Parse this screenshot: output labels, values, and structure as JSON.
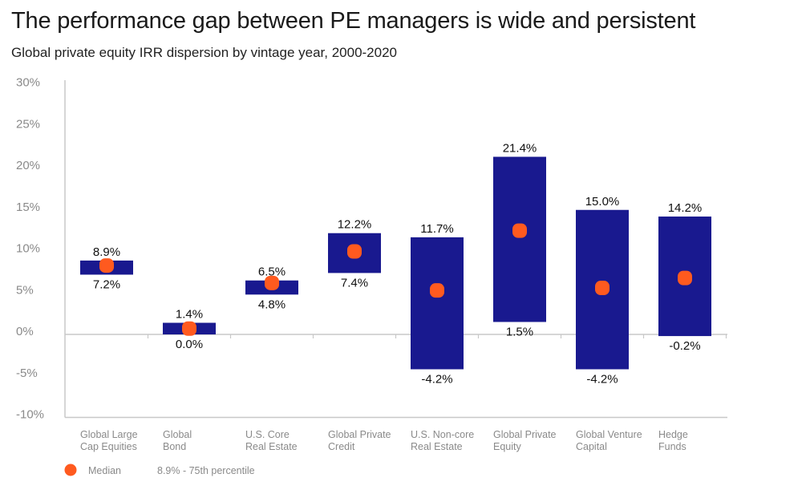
{
  "chart_data": {
    "type": "floating-bar",
    "title": "The performance gap between PE managers is wide and persistent",
    "subtitle": "Global private equity IRR dispersion by vintage year, 2000-2020",
    "ylim": [
      -10,
      30
    ],
    "yticks": [
      "30%",
      "25%",
      "20%",
      "15%",
      "10%",
      "5%",
      "0%",
      "-5%",
      "-10%"
    ],
    "ytick_values": [
      30,
      25,
      20,
      15,
      10,
      5,
      0,
      -5,
      -10
    ],
    "grid": false,
    "categories": [
      [
        "Global Large",
        "Cap Equities"
      ],
      [
        "Global",
        "Bond"
      ],
      [
        "U.S. Core",
        "Real Estate"
      ],
      [
        "Global Private",
        "Credit"
      ],
      [
        "U.S. Non-core",
        "Real Estate"
      ],
      [
        "Global Private",
        "Equity"
      ],
      [
        "Global Venture",
        "Capital"
      ],
      [
        "Hedge",
        "Funds"
      ]
    ],
    "top_75th": [
      8.9,
      1.4,
      6.5,
      12.2,
      11.7,
      21.4,
      15.0,
      14.2
    ],
    "bottom_25th": [
      7.2,
      0.0,
      4.8,
      7.4,
      -4.2,
      1.5,
      -4.2,
      -0.2
    ],
    "top_labels": [
      "8.9%",
      "1.4%",
      "6.5%",
      "12.2%",
      "11.7%",
      "21.4%",
      "15.0%",
      "14.2%"
    ],
    "bottom_labels": [
      "7.2%",
      "0.0%",
      "4.8%",
      "7.4%",
      "-4.2%",
      "1.5%",
      "-4.2%",
      "-0.2%"
    ],
    "median": [
      8.3,
      0.7,
      6.2,
      10.0,
      5.3,
      12.5,
      5.6,
      6.8
    ],
    "legend": {
      "median_label": "Median",
      "range_note": "8.9% - 75th percentile",
      "placement": "bottom-left"
    },
    "colors": {
      "bar": "#19198f",
      "median": "#ff5a1f",
      "axis": "#c8c8c8"
    }
  }
}
